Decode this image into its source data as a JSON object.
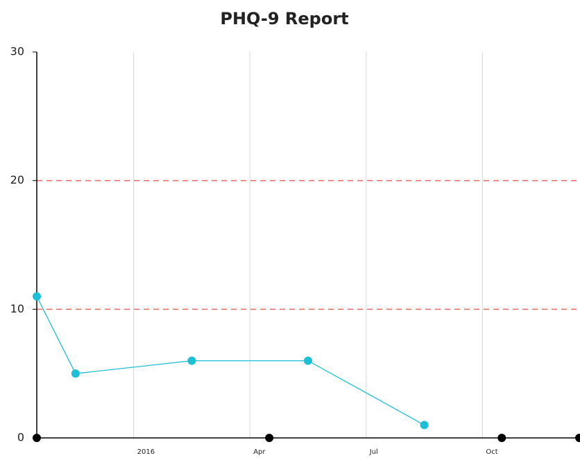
{
  "chart_data": {
    "type": "line",
    "title": "PHQ-9 Report",
    "series": [
      {
        "color": "#1cbfd6",
        "x": [
          "2015-10",
          "2015-11",
          "2016-02",
          "2016-05",
          "2016-08"
        ],
        "values": [
          11,
          5,
          6,
          6,
          1
        ]
      },
      {
        "color": "#000000",
        "markers_only": true,
        "x": [
          "2015-10",
          "2016-04",
          "2016-10",
          "2016-12"
        ],
        "values": [
          0,
          0,
          0,
          0
        ]
      }
    ],
    "xlim": [
      "2015-10",
      "2016-12"
    ],
    "xticks": [
      {
        "value": "2016-01",
        "label": "2016"
      },
      {
        "value": "2016-04",
        "label": "Apr"
      },
      {
        "value": "2016-07",
        "label": "Jul"
      },
      {
        "value": "2016-10",
        "label": "Oct"
      }
    ],
    "ylim": [
      0,
      30
    ],
    "yticks": [
      0,
      10,
      20,
      30
    ],
    "thresholds": [
      10,
      20
    ],
    "threshold_color": "#e8675e",
    "grid": "x"
  }
}
